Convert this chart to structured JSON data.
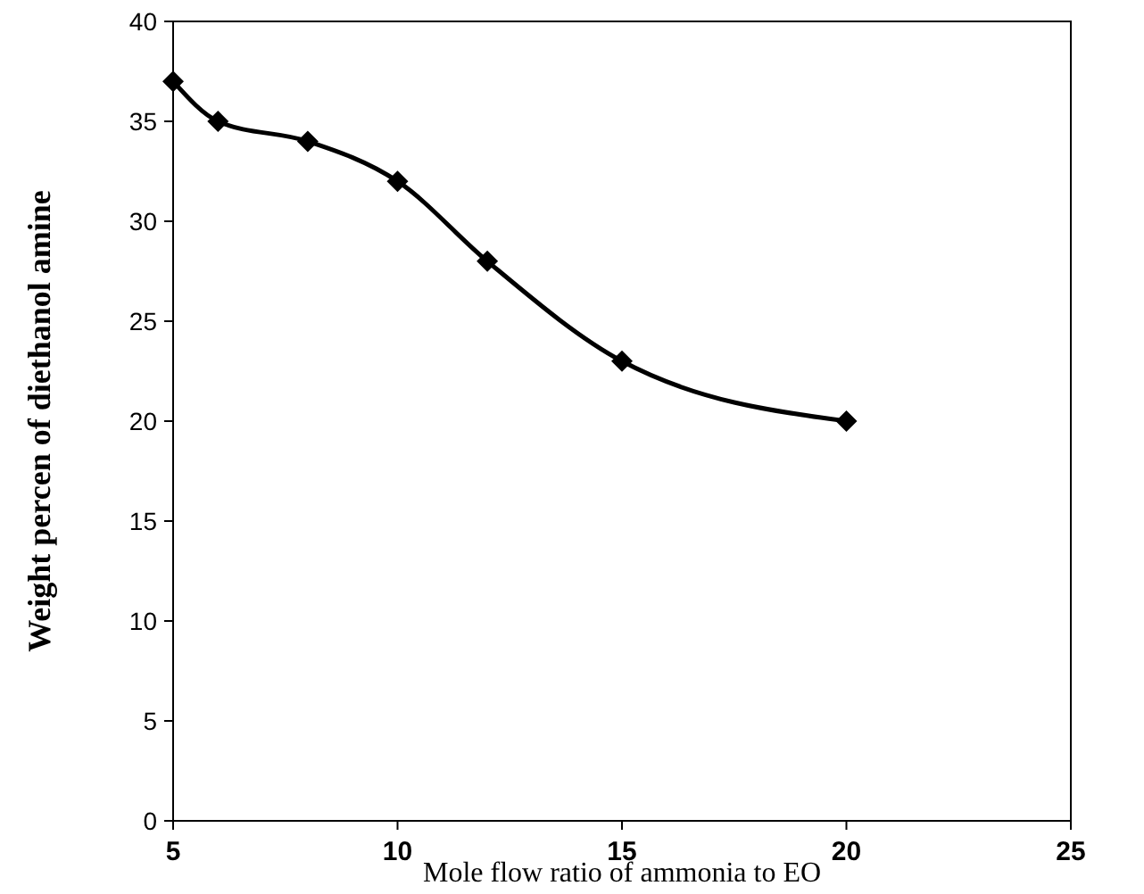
{
  "chart_data": {
    "type": "line",
    "xlabel": "Mole flow ratio of ammonia to EO",
    "ylabel": "Weight percen of diethanol amine",
    "x": [
      5,
      6,
      8,
      10,
      12,
      15,
      20
    ],
    "series": [
      {
        "color": "#000000",
        "values": [
          37,
          35,
          34,
          32,
          28,
          23,
          20
        ]
      }
    ],
    "xlim": [
      5,
      25
    ],
    "xticks": [
      5,
      10,
      15,
      20,
      25
    ],
    "ylim": [
      0,
      40
    ],
    "yticks": [
      0,
      5,
      10,
      15,
      20,
      25,
      30,
      35,
      40
    ],
    "grid": false,
    "marker": "diamond",
    "line_style": "solid"
  }
}
